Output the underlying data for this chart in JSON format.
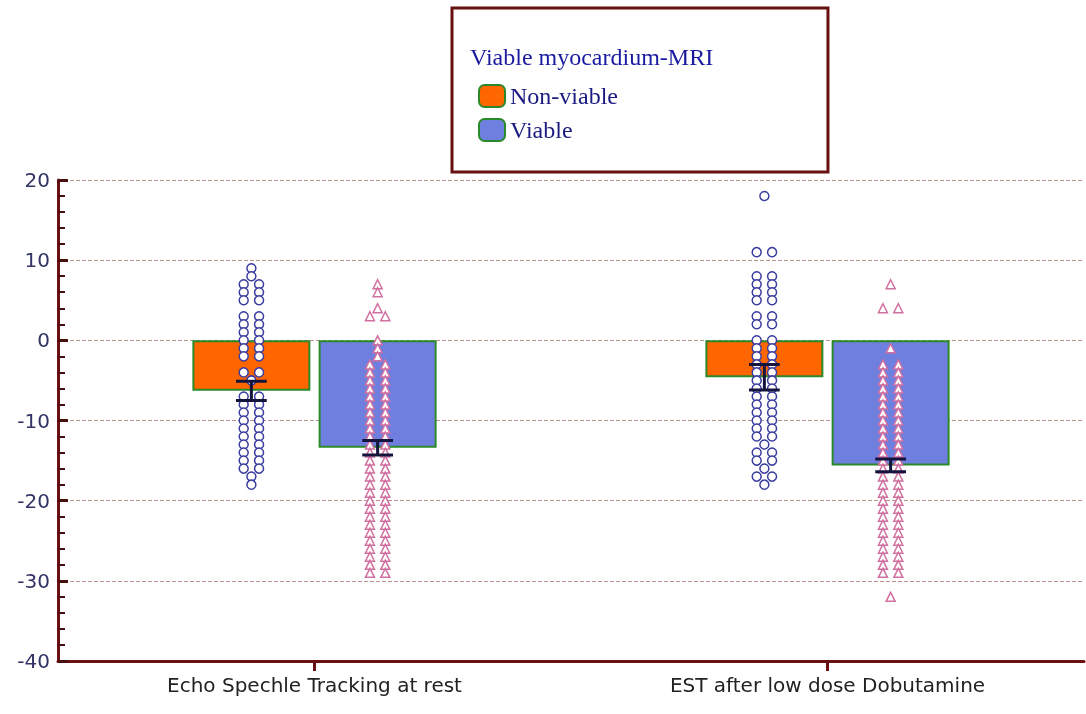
{
  "chart_data": {
    "type": "bar",
    "legend_title": "Viable myocardium-MRI",
    "legend": "top",
    "grid": "y",
    "categories": [
      "Echo Spechle Tracking at rest",
      "EST after low dose Dobutamine"
    ],
    "ylim": [
      -40,
      20
    ],
    "yticks": [
      -40,
      -30,
      -20,
      -10,
      0,
      10,
      20
    ],
    "series": [
      {
        "name": "Non-viable",
        "color": "#ff6600",
        "values": [
          -6.3,
          -4.6
        ],
        "errors": [
          1.2,
          1.6
        ]
      },
      {
        "name": "Viable",
        "color": "#6f7fe0",
        "values": [
          -13.4,
          -15.6
        ],
        "errors": [
          0.9,
          0.8
        ]
      },
      {
        "type": "scatter",
        "marker": "circle",
        "color": "#3c3ca0",
        "values": [
          9,
          8,
          7,
          7,
          6,
          6,
          5,
          5,
          3,
          3,
          2,
          2,
          1,
          1,
          0,
          0,
          -1,
          -1,
          -2,
          -2,
          -4,
          -4,
          -5,
          -7,
          -7,
          -8,
          -8,
          -9,
          -9,
          -10,
          -10,
          -11,
          -11,
          -12,
          -12,
          -13,
          -13,
          -14,
          -14,
          -15,
          -15,
          -16,
          -16,
          -17,
          -18,
          18,
          11,
          11,
          8,
          8,
          7,
          7,
          6,
          6,
          5,
          5,
          3,
          3,
          2,
          2,
          0,
          0,
          -1,
          -1,
          -2,
          -2,
          -3,
          -3,
          -4,
          -4,
          -5,
          -5,
          -6,
          -6,
          -7,
          -7,
          -8,
          -8,
          -9,
          -9,
          -10,
          -10,
          -11,
          -11,
          -12,
          -12,
          -13,
          -14,
          -14,
          -15,
          -15,
          -16,
          -17,
          -17,
          -18
        ],
        "x": [
          "Echo Spechle Tracking at rest",
          "Echo Spechle Tracking at rest",
          "Echo Spechle Tracking at rest",
          "Echo Spechle Tracking at rest",
          "Echo Spechle Tracking at rest",
          "Echo Spechle Tracking at rest",
          "Echo Spechle Tracking at rest",
          "Echo Spechle Tracking at rest",
          "Echo Spechle Tracking at rest",
          "Echo Spechle Tracking at rest",
          "Echo Spechle Tracking at rest",
          "Echo Spechle Tracking at rest",
          "Echo Spechle Tracking at rest",
          "Echo Spechle Tracking at rest",
          "Echo Spechle Tracking at rest",
          "Echo Spechle Tracking at rest",
          "Echo Spechle Tracking at rest",
          "Echo Spechle Tracking at rest",
          "Echo Spechle Tracking at rest",
          "Echo Spechle Tracking at rest",
          "Echo Spechle Tracking at rest",
          "Echo Spechle Tracking at rest",
          "Echo Spechle Tracking at rest",
          "Echo Spechle Tracking at rest",
          "Echo Spechle Tracking at rest",
          "Echo Spechle Tracking at rest",
          "Echo Spechle Tracking at rest",
          "Echo Spechle Tracking at rest",
          "Echo Spechle Tracking at rest",
          "Echo Spechle Tracking at rest",
          "Echo Spechle Tracking at rest",
          "Echo Spechle Tracking at rest",
          "Echo Spechle Tracking at rest",
          "Echo Spechle Tracking at rest",
          "Echo Spechle Tracking at rest",
          "Echo Spechle Tracking at rest",
          "Echo Spechle Tracking at rest",
          "Echo Spechle Tracking at rest",
          "Echo Spechle Tracking at rest",
          "Echo Spechle Tracking at rest",
          "Echo Spechle Tracking at rest",
          "Echo Spechle Tracking at rest",
          "Echo Spechle Tracking at rest",
          "Echo Spechle Tracking at rest",
          "Echo Spechle Tracking at rest",
          "EST after low dose Dobutamine",
          "EST after low dose Dobutamine",
          "EST after low dose Dobutamine",
          "EST after low dose Dobutamine",
          "EST after low dose Dobutamine",
          "EST after low dose Dobutamine",
          "EST after low dose Dobutamine",
          "EST after low dose Dobutamine",
          "EST after low dose Dobutamine",
          "EST after low dose Dobutamine",
          "EST after low dose Dobutamine",
          "EST after low dose Dobutamine",
          "EST after low dose Dobutamine",
          "EST after low dose Dobutamine",
          "EST after low dose Dobutamine",
          "EST after low dose Dobutamine",
          "EST after low dose Dobutamine",
          "EST after low dose Dobutamine",
          "EST after low dose Dobutamine",
          "EST after low dose Dobutamine",
          "EST after low dose Dobutamine",
          "EST after low dose Dobutamine",
          "EST after low dose Dobutamine",
          "EST after low dose Dobutamine",
          "EST after low dose Dobutamine",
          "EST after low dose Dobutamine",
          "EST after low dose Dobutamine",
          "EST after low dose Dobutamine",
          "EST after low dose Dobutamine",
          "EST after low dose Dobutamine",
          "EST after low dose Dobutamine",
          "EST after low dose Dobutamine",
          "EST after low dose Dobutamine",
          "EST after low dose Dobutamine",
          "EST after low dose Dobutamine",
          "EST after low dose Dobutamine",
          "EST after low dose Dobutamine",
          "EST after low dose Dobutamine",
          "EST after low dose Dobutamine",
          "EST after low dose Dobutamine",
          "EST after low dose Dobutamine",
          "EST after low dose Dobutamine",
          "EST after low dose Dobutamine",
          "EST after low dose Dobutamine",
          "EST after low dose Dobutamine",
          "EST after low dose Dobutamine",
          "EST after low dose Dobutamine",
          "EST after low dose Dobutamine",
          "EST after low dose Dobutamine",
          "EST after low dose Dobutamine"
        ]
      },
      {
        "type": "scatter",
        "marker": "triangle",
        "color": "#d070a0",
        "values": [
          7,
          6,
          4,
          3,
          3,
          0,
          -1,
          -2,
          -3,
          -3,
          -4,
          -4,
          -5,
          -5,
          -6,
          -6,
          -7,
          -7,
          -8,
          -8,
          -9,
          -9,
          -10,
          -10,
          -11,
          -11,
          -12,
          -12,
          -13,
          -13,
          -14,
          -14,
          -15,
          -15,
          -16,
          -16,
          -17,
          -17,
          -18,
          -18,
          -19,
          -19,
          -20,
          -20,
          -21,
          -21,
          -22,
          -22,
          -23,
          -23,
          -24,
          -24,
          -25,
          -25,
          -26,
          -26,
          -27,
          -27,
          -28,
          -28,
          -29,
          -29,
          7,
          4,
          4,
          -1,
          -3,
          -3,
          -4,
          -4,
          -5,
          -5,
          -6,
          -6,
          -7,
          -7,
          -8,
          -8,
          -9,
          -9,
          -10,
          -10,
          -11,
          -11,
          -12,
          -12,
          -13,
          -13,
          -14,
          -14,
          -15,
          -15,
          -16,
          -16,
          -17,
          -17,
          -18,
          -18,
          -19,
          -19,
          -20,
          -20,
          -21,
          -21,
          -22,
          -22,
          -23,
          -23,
          -24,
          -24,
          -25,
          -25,
          -26,
          -26,
          -27,
          -27,
          -28,
          -28,
          -29,
          -29,
          -32
        ],
        "x": [
          "Echo Spechle Tracking at rest",
          "Echo Spechle Tracking at rest",
          "Echo Spechle Tracking at rest",
          "Echo Spechle Tracking at rest",
          "Echo Spechle Tracking at rest",
          "Echo Spechle Tracking at rest",
          "Echo Spechle Tracking at rest",
          "Echo Spechle Tracking at rest",
          "Echo Spechle Tracking at rest",
          "Echo Spechle Tracking at rest",
          "Echo Spechle Tracking at rest",
          "Echo Spechle Tracking at rest",
          "Echo Spechle Tracking at rest",
          "Echo Spechle Tracking at rest",
          "Echo Spechle Tracking at rest",
          "Echo Spechle Tracking at rest",
          "Echo Spechle Tracking at rest",
          "Echo Spechle Tracking at rest",
          "Echo Spechle Tracking at rest",
          "Echo Spechle Tracking at rest",
          "Echo Spechle Tracking at rest",
          "Echo Spechle Tracking at rest",
          "Echo Spechle Tracking at rest",
          "Echo Spechle Tracking at rest",
          "Echo Spechle Tracking at rest",
          "Echo Spechle Tracking at rest",
          "Echo Spechle Tracking at rest",
          "Echo Spechle Tracking at rest",
          "Echo Spechle Tracking at rest",
          "Echo Spechle Tracking at rest",
          "Echo Spechle Tracking at rest",
          "Echo Spechle Tracking at rest",
          "Echo Spechle Tracking at rest",
          "Echo Spechle Tracking at rest",
          "Echo Spechle Tracking at rest",
          "Echo Spechle Tracking at rest",
          "Echo Spechle Tracking at rest",
          "Echo Spechle Tracking at rest",
          "Echo Spechle Tracking at rest",
          "Echo Spechle Tracking at rest",
          "Echo Spechle Tracking at rest",
          "Echo Spechle Tracking at rest",
          "Echo Spechle Tracking at rest",
          "Echo Spechle Tracking at rest",
          "Echo Spechle Tracking at rest",
          "Echo Spechle Tracking at rest",
          "Echo Spechle Tracking at rest",
          "Echo Spechle Tracking at rest",
          "Echo Spechle Tracking at rest",
          "Echo Spechle Tracking at rest",
          "Echo Spechle Tracking at rest",
          "Echo Spechle Tracking at rest",
          "Echo Spechle Tracking at rest",
          "Echo Spechle Tracking at rest",
          "Echo Spechle Tracking at rest",
          "Echo Spechle Tracking at rest",
          "Echo Spechle Tracking at rest",
          "Echo Spechle Tracking at rest",
          "Echo Spechle Tracking at rest",
          "Echo Spechle Tracking at rest",
          "Echo Spechle Tracking at rest",
          "Echo Spechle Tracking at rest",
          "EST after low dose Dobutamine",
          "EST after low dose Dobutamine",
          "EST after low dose Dobutamine",
          "EST after low dose Dobutamine",
          "EST after low dose Dobutamine",
          "EST after low dose Dobutamine",
          "EST after low dose Dobutamine",
          "EST after low dose Dobutamine",
          "EST after low dose Dobutamine",
          "EST after low dose Dobutamine",
          "EST after low dose Dobutamine",
          "EST after low dose Dobutamine",
          "EST after low dose Dobutamine",
          "EST after low dose Dobutamine",
          "EST after low dose Dobutamine",
          "EST after low dose Dobutamine",
          "EST after low dose Dobutamine",
          "EST after low dose Dobutamine",
          "EST after low dose Dobutamine",
          "EST after low dose Dobutamine",
          "EST after low dose Dobutamine",
          "EST after low dose Dobutamine",
          "EST after low dose Dobutamine",
          "EST after low dose Dobutamine",
          "EST after low dose Dobutamine",
          "EST after low dose Dobutamine",
          "EST after low dose Dobutamine",
          "EST after low dose Dobutamine",
          "EST after low dose Dobutamine",
          "EST after low dose Dobutamine",
          "EST after low dose Dobutamine",
          "EST after low dose Dobutamine",
          "EST after low dose Dobutamine",
          "EST after low dose Dobutamine",
          "EST after low dose Dobutamine",
          "EST after low dose Dobutamine",
          "EST after low dose Dobutamine",
          "EST after low dose Dobutamine",
          "EST after low dose Dobutamine",
          "EST after low dose Dobutamine",
          "EST after low dose Dobutamine",
          "EST after low dose Dobutamine",
          "EST after low dose Dobutamine",
          "EST after low dose Dobutamine",
          "EST after low dose Dobutamine",
          "EST after low dose Dobutamine",
          "EST after low dose Dobutamine",
          "EST after low dose Dobutamine",
          "EST after low dose Dobutamine",
          "EST after low dose Dobutamine",
          "EST after low dose Dobutamine",
          "EST after low dose Dobutamine",
          "EST after low dose Dobutamine",
          "EST after low dose Dobutamine",
          "EST after low dose Dobutamine",
          "EST after low dose Dobutamine",
          "EST after low dose Dobutamine",
          "EST after low dose Dobutamine",
          "EST after low dose Dobutamine"
        ]
      }
    ]
  }
}
